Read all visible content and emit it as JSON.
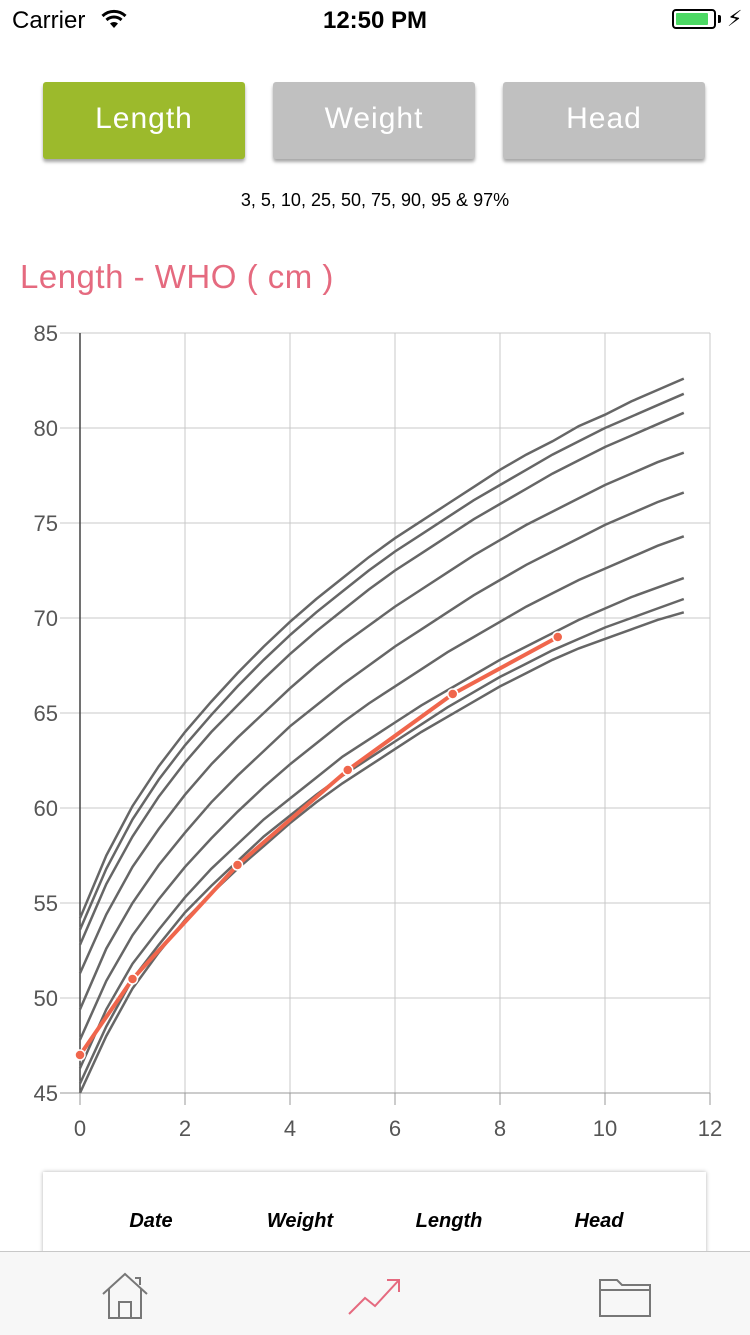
{
  "status_bar": {
    "carrier": "Carrier",
    "time": "12:50 PM",
    "battery_percent": 90,
    "battery_color": "#4cd964"
  },
  "tabs": [
    {
      "label": "Length",
      "active": true
    },
    {
      "label": "Weight",
      "active": false
    },
    {
      "label": "Head",
      "active": false
    }
  ],
  "colors": {
    "accent_active": "#9cba2c",
    "button_inactive": "#c0c0c0",
    "title": "#e56a7f",
    "measurement_line": "#f0664c",
    "percentile_line": "#666666",
    "tab_active_icon": "#e56a7f"
  },
  "percentiles_text": "3, 5, 10, 25, 50, 75, 90, 95 & 97%",
  "chart_title": "Length - WHO ( cm )",
  "chart_data": {
    "type": "line",
    "title": "Length - WHO ( cm )",
    "xlabel": "",
    "ylabel": "",
    "xlim": [
      0,
      12
    ],
    "ylim": [
      45,
      85
    ],
    "x_ticks": [
      0,
      2,
      4,
      6,
      8,
      10,
      12
    ],
    "y_ticks": [
      45,
      50,
      55,
      60,
      65,
      70,
      75,
      80,
      85
    ],
    "grid": true,
    "x": [
      0,
      0.5,
      1,
      1.5,
      2,
      2.5,
      3,
      3.5,
      4,
      4.5,
      5,
      5.5,
      6,
      6.5,
      7,
      7.5,
      8,
      8.5,
      9,
      9.5,
      10,
      10.5,
      11,
      11.5
    ],
    "series": [
      {
        "values": [
          45.0,
          48.0,
          50.5,
          52.4,
          54.1,
          55.5,
          56.8,
          58.0,
          59.2,
          60.3,
          61.3,
          62.2,
          63.1,
          64.0,
          64.8,
          65.6,
          66.4,
          67.1,
          67.8,
          68.4,
          68.9,
          69.4,
          69.9,
          70.3
        ]
      },
      {
        "values": [
          45.5,
          48.5,
          51.0,
          52.8,
          54.5,
          55.9,
          57.2,
          58.5,
          59.6,
          60.7,
          61.7,
          62.6,
          63.5,
          64.4,
          65.3,
          66.1,
          66.9,
          67.6,
          68.3,
          68.9,
          69.5,
          70.0,
          70.5,
          71.0
        ]
      },
      {
        "values": [
          46.3,
          49.4,
          51.8,
          53.6,
          55.3,
          56.8,
          58.1,
          59.4,
          60.5,
          61.6,
          62.7,
          63.6,
          64.5,
          65.4,
          66.2,
          67.0,
          67.8,
          68.5,
          69.2,
          69.9,
          70.5,
          71.1,
          71.6,
          72.1
        ]
      },
      {
        "values": [
          47.8,
          50.9,
          53.3,
          55.2,
          56.9,
          58.4,
          59.8,
          61.1,
          62.3,
          63.4,
          64.5,
          65.5,
          66.4,
          67.3,
          68.2,
          69.0,
          69.8,
          70.6,
          71.3,
          72.0,
          72.6,
          73.2,
          73.8,
          74.3
        ]
      },
      {
        "values": [
          49.4,
          52.6,
          55.0,
          57.0,
          58.7,
          60.3,
          61.7,
          63.0,
          64.3,
          65.4,
          66.5,
          67.5,
          68.5,
          69.4,
          70.3,
          71.2,
          72.0,
          72.8,
          73.5,
          74.2,
          74.9,
          75.5,
          76.1,
          76.6
        ]
      },
      {
        "values": [
          51.3,
          54.4,
          56.9,
          58.9,
          60.7,
          62.3,
          63.7,
          65.0,
          66.3,
          67.5,
          68.6,
          69.6,
          70.6,
          71.5,
          72.4,
          73.3,
          74.1,
          74.9,
          75.6,
          76.3,
          77.0,
          77.6,
          78.2,
          78.7
        ]
      },
      {
        "values": [
          52.8,
          56.0,
          58.5,
          60.6,
          62.4,
          64.0,
          65.4,
          66.8,
          68.1,
          69.3,
          70.4,
          71.5,
          72.5,
          73.4,
          74.3,
          75.2,
          76.0,
          76.8,
          77.6,
          78.3,
          79.0,
          79.6,
          80.2,
          80.8
        ]
      },
      {
        "values": [
          53.6,
          56.8,
          59.4,
          61.5,
          63.3,
          64.9,
          66.4,
          67.8,
          69.1,
          70.3,
          71.4,
          72.5,
          73.5,
          74.4,
          75.3,
          76.2,
          77.0,
          77.8,
          78.6,
          79.3,
          80.0,
          80.6,
          81.2,
          81.8
        ]
      },
      {
        "values": [
          54.2,
          57.5,
          60.1,
          62.2,
          64.0,
          65.6,
          67.1,
          68.5,
          69.8,
          71.0,
          72.1,
          73.2,
          74.2,
          75.1,
          76.0,
          76.9,
          77.8,
          78.6,
          79.3,
          80.1,
          80.7,
          81.4,
          82.0,
          82.6
        ]
      }
    ],
    "measurements": {
      "x": [
        0,
        1,
        3,
        5.1,
        7.1,
        9.1
      ],
      "y": [
        47,
        51,
        57,
        62,
        66,
        69
      ]
    }
  },
  "table_headers": [
    "Date",
    "Weight",
    "Length",
    "Head"
  ],
  "tab_bar": [
    {
      "icon": "home-icon",
      "active": false
    },
    {
      "icon": "chart-trend-icon",
      "active": true
    },
    {
      "icon": "folder-icon",
      "active": false
    }
  ]
}
